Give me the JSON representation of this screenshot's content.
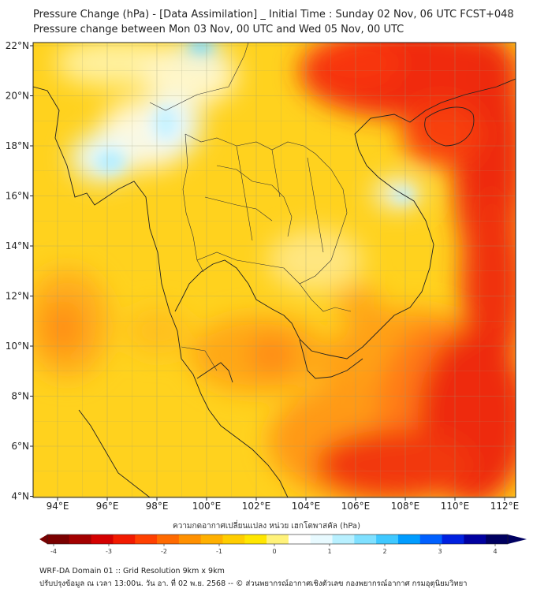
{
  "title_line1": "Pressure Change (hPa) - [Data Assimilation] _ Initial Time : Sunday 02 Nov, 06 UTC FCST+048",
  "title_line2": "Pressure change between Mon 03 Nov, 00 UTC and Wed 05 Nov, 00 UTC",
  "lat_labels": [
    "22°N",
    "20°N",
    "18°N",
    "16°N",
    "14°N",
    "12°N",
    "10°N",
    "8°N",
    "6°N",
    "4°N"
  ],
  "lon_labels": [
    "94°E",
    "96°E",
    "98°E",
    "100°E",
    "102°E",
    "104°E",
    "106°E",
    "108°E",
    "110°E",
    "112°E"
  ],
  "colorbar": {
    "title": "ความกดอากาศเปลี่ยนแปลง หน่วย เฮกโตพาสคัล (hPa)",
    "ticks": [
      "-4",
      "-3",
      "-2",
      "-1",
      "0",
      "1",
      "2",
      "3",
      "4"
    ],
    "colors": [
      "#7a0000",
      "#a30000",
      "#d40000",
      "#f21a00",
      "#ff4000",
      "#ff6a00",
      "#ff9000",
      "#ffb000",
      "#ffcd00",
      "#ffe600",
      "#fff27a",
      "#ffffff",
      "#e8faff",
      "#b8f0ff",
      "#7fe0ff",
      "#3fc8ff",
      "#009cff",
      "#0060ff",
      "#0020e0",
      "#0000a0",
      "#000060"
    ]
  },
  "footer_line1": "WRF-DA Domain 01 :: Grid Resolution 9km x 9km",
  "footer_line2": "ปรับปรุงข้อมูล ณ เวลา 13:00น. วัน อา. ที่ 02 พ.ย. 2568 -- © ส่วนพยากรณ์อากาศเชิงตัวเลข กองพยากรณ์อากาศ กรมอุตุนิยมวิทยา"
}
